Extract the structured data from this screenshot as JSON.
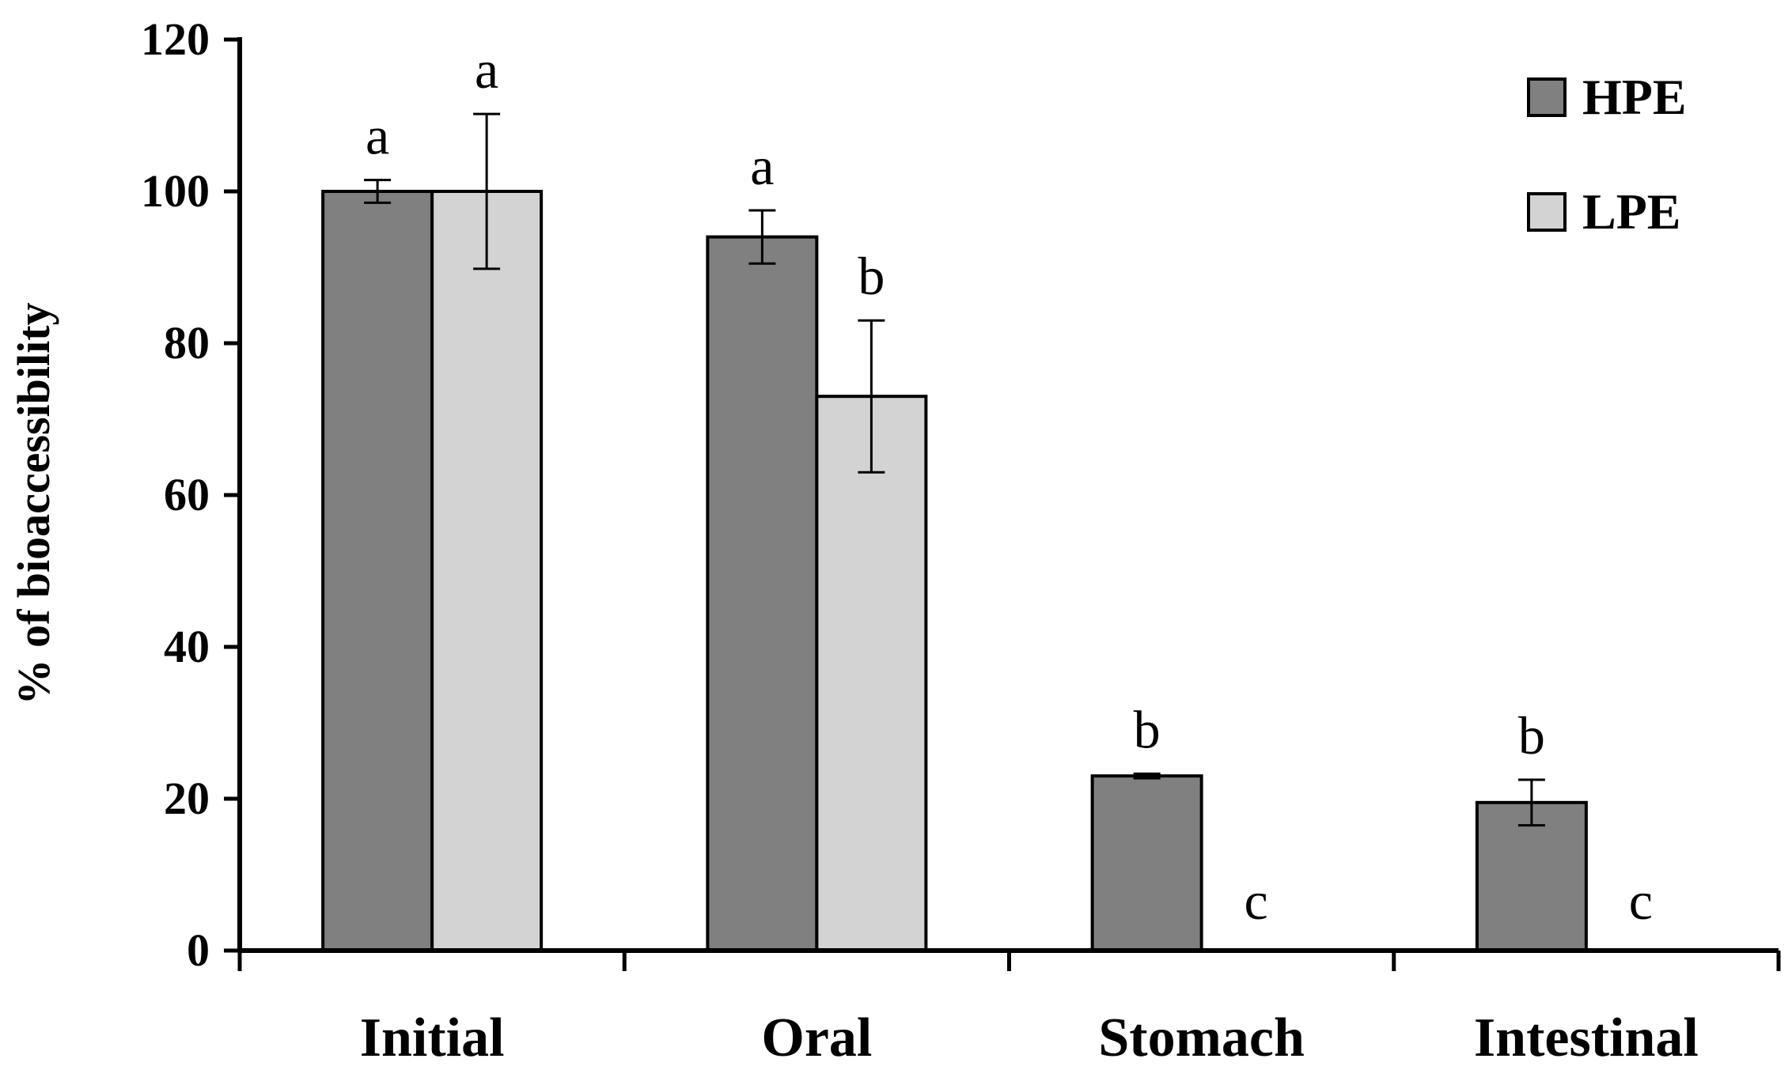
{
  "chart_data": {
    "type": "bar",
    "title": "",
    "xlabel": "",
    "ylabel": "% of bioaccessibility",
    "ylim": [
      0,
      120
    ],
    "yticks": [
      0,
      20,
      40,
      60,
      80,
      100,
      120
    ],
    "categories": [
      "Initial",
      "Oral",
      "Stomach",
      "Intestinal"
    ],
    "legend_position": "top-right",
    "grid": false,
    "series": [
      {
        "name": "HPE",
        "color": "#808080",
        "values": [
          100,
          94,
          23,
          19.5
        ],
        "errors": [
          1.5,
          3.5,
          0.3,
          3
        ],
        "letters": [
          "a",
          "a",
          "b",
          "b"
        ]
      },
      {
        "name": "LPE",
        "color": "#d3d3d3",
        "values": [
          100,
          73,
          0,
          0
        ],
        "errors": [
          10.2,
          10,
          0,
          0
        ],
        "letters": [
          "a",
          "b",
          "c",
          "c"
        ]
      }
    ]
  }
}
